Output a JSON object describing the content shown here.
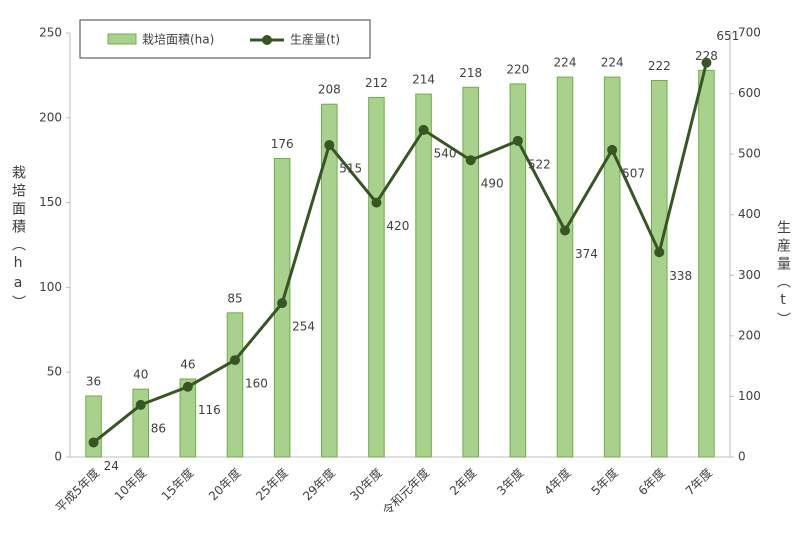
{
  "chart_data": {
    "type": "bar-line",
    "categories": [
      "平成5年度",
      "10年度",
      "15年度",
      "20年度",
      "25年度",
      "29年度",
      "30年度",
      "令和元年度",
      "2年度",
      "3年度",
      "4年度",
      "5年度",
      "6年度",
      "7年度"
    ],
    "series": [
      {
        "name": "栽培面積(ha)",
        "type": "bar",
        "color": "#a9d18e",
        "values": [
          36,
          40,
          46,
          85,
          176,
          208,
          212,
          214,
          218,
          220,
          224,
          224,
          222,
          228
        ]
      },
      {
        "name": "生産量(t)",
        "type": "line",
        "color": "#375623",
        "axis": "y2",
        "values": [
          24,
          86,
          116,
          160,
          254,
          515,
          420,
          540,
          490,
          522,
          374,
          507,
          338,
          651
        ]
      }
    ],
    "ylabel": "栽培面積（ha）",
    "y2label": "生産量（t）",
    "ylim": [
      0,
      250
    ],
    "yticks": [
      0,
      50,
      100,
      150,
      200,
      250
    ],
    "y2lim": [
      0,
      700
    ],
    "y2ticks": [
      0,
      100,
      200,
      300,
      400,
      500,
      600,
      700
    ],
    "legend": "top-left"
  }
}
